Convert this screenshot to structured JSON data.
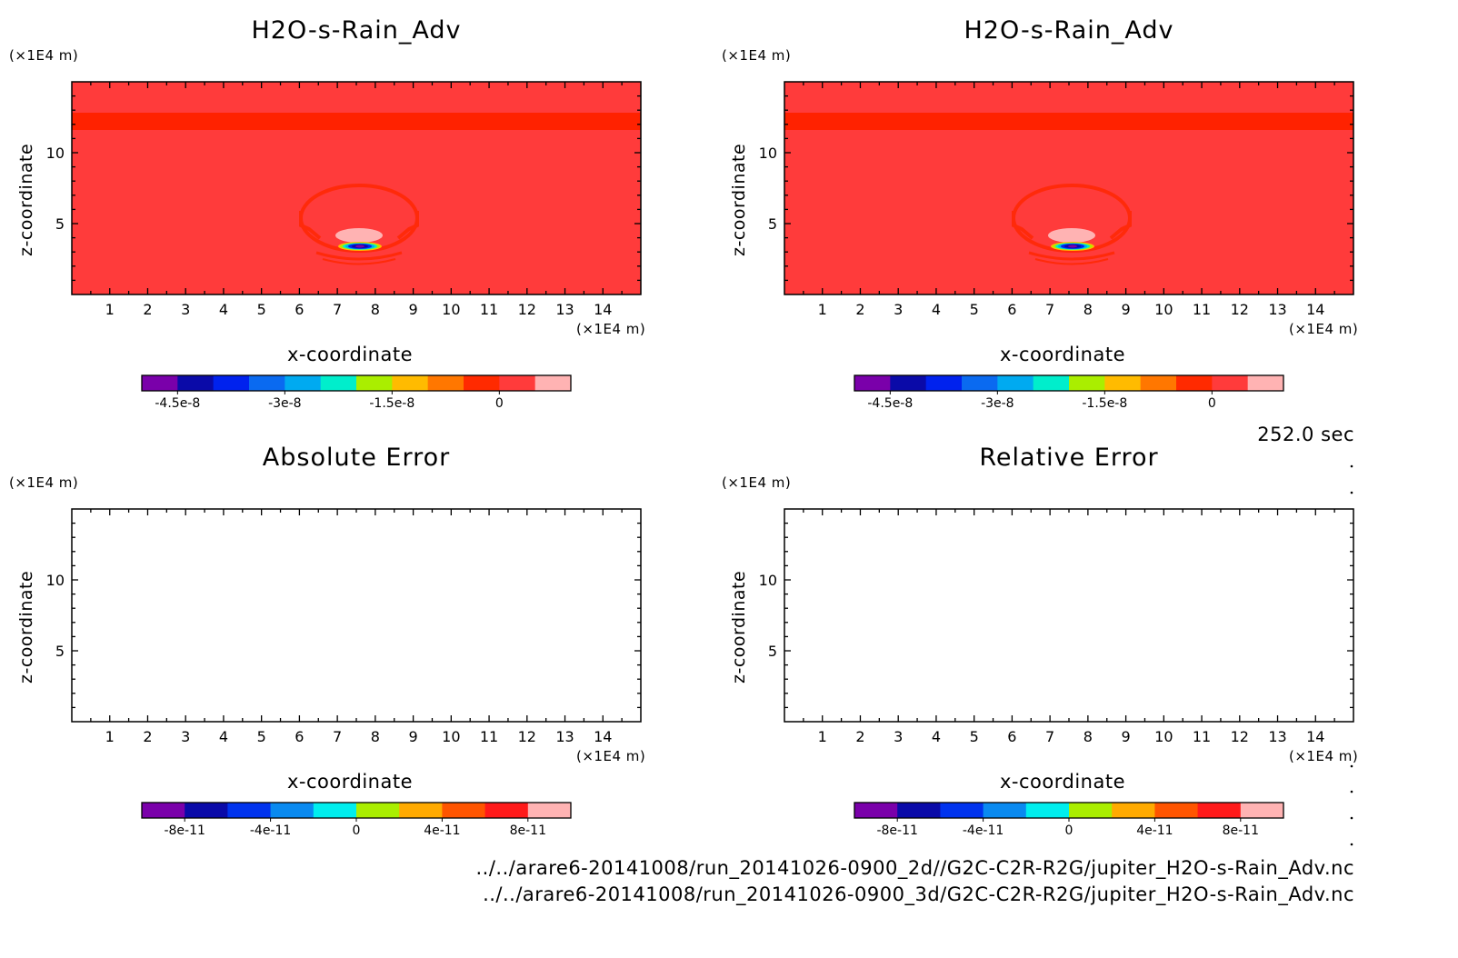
{
  "colors": {
    "field_bg": "#ff3b3b",
    "band": "#ff2200",
    "contour": "#ff2a0a",
    "pink": "#ffb3b3",
    "axis": "#000000"
  },
  "timestamp": "252.0 sec",
  "files": [
    "../../arare6-20141008/run_20141026-0900_2d//G2C-C2R-R2G/jupiter_H2O-s-Rain_Adv.nc",
    "../../arare6-20141008/run_20141026-0900_3d/G2C-C2R-R2G/jupiter_H2O-s-Rain_Adv.nc"
  ],
  "panels": [
    {
      "title": "H2O-s-Rain_Adv",
      "yunit": "(×1E4 m)",
      "xunit": "(×1E4 m)",
      "xlabel": "x-coordinate",
      "ylabel": "z-coordinate",
      "xticks": [
        "1",
        "2",
        "3",
        "4",
        "5",
        "6",
        "7",
        "8",
        "9",
        "10",
        "11",
        "12",
        "13",
        "14"
      ],
      "yticks": [
        "5",
        "10"
      ],
      "filled": true,
      "colorbar": {
        "colors": [
          "#7a00aa",
          "#0a0aa8",
          "#0022ee",
          "#0a6af0",
          "#00aaf0",
          "#00eecc",
          "#aaee00",
          "#ffbb00",
          "#ff7700",
          "#ff2a00",
          "#ff3b3b",
          "#ffb3b3"
        ],
        "labels": [
          "-4.5e-8",
          "-3e-8",
          "-1.5e-8",
          "0"
        ]
      }
    },
    {
      "title": "H2O-s-Rain_Adv",
      "yunit": "(×1E4 m)",
      "xunit": "(×1E4 m)",
      "xlabel": "x-coordinate",
      "ylabel": "z-coordinate",
      "xticks": [
        "1",
        "2",
        "3",
        "4",
        "5",
        "6",
        "7",
        "8",
        "9",
        "10",
        "11",
        "12",
        "13",
        "14"
      ],
      "yticks": [
        "5",
        "10"
      ],
      "filled": true,
      "colorbar": {
        "colors": [
          "#7a00aa",
          "#0a0aa8",
          "#0022ee",
          "#0a6af0",
          "#00aaf0",
          "#00eecc",
          "#aaee00",
          "#ffbb00",
          "#ff7700",
          "#ff2a00",
          "#ff3b3b",
          "#ffb3b3"
        ],
        "labels": [
          "-4.5e-8",
          "-3e-8",
          "-1.5e-8",
          "0"
        ]
      }
    },
    {
      "title": "Absolute Error",
      "yunit": "(×1E4 m)",
      "xunit": "(×1E4 m)",
      "xlabel": "x-coordinate",
      "ylabel": "z-coordinate",
      "xticks": [
        "1",
        "2",
        "3",
        "4",
        "5",
        "6",
        "7",
        "8",
        "9",
        "10",
        "11",
        "12",
        "13",
        "14"
      ],
      "yticks": [
        "5",
        "10"
      ],
      "filled": false,
      "colorbar": {
        "colors": [
          "#7a00aa",
          "#0a0aa8",
          "#0033ee",
          "#0a8af0",
          "#00eeee",
          "#aaee00",
          "#ffaa00",
          "#ff5500",
          "#ff1a1a",
          "#ffb3b3"
        ],
        "labels": [
          "-8e-11",
          "-4e-11",
          "0",
          "4e-11",
          "8e-11"
        ]
      }
    },
    {
      "title": "Relative Error",
      "yunit": "(×1E4 m)",
      "xunit": "(×1E4 m)",
      "xlabel": "x-coordinate",
      "ylabel": "z-coordinate",
      "xticks": [
        "1",
        "2",
        "3",
        "4",
        "5",
        "6",
        "7",
        "8",
        "9",
        "10",
        "11",
        "12",
        "13",
        "14"
      ],
      "yticks": [
        "5",
        "10"
      ],
      "filled": false,
      "colorbar": {
        "colors": [
          "#7a00aa",
          "#0a0aa8",
          "#0033ee",
          "#0a8af0",
          "#00eeee",
          "#aaee00",
          "#ffaa00",
          "#ff5500",
          "#ff1a1a",
          "#ffb3b3"
        ],
        "labels": [
          "-8e-11",
          "-4e-11",
          "0",
          "4e-11",
          "8e-11"
        ]
      }
    }
  ],
  "chart_data": [
    {
      "type": "heatmap",
      "title": "H2O-s-Rain_Adv",
      "xlabel": "x-coordinate",
      "ylabel": "z-coordinate",
      "x_unit": "(×1E4 m)",
      "y_unit": "(×1E4 m)",
      "xlim": [
        0,
        15
      ],
      "ylim": [
        0,
        15
      ],
      "colorbar_labels": [
        "-4.5e-8",
        "-3e-8",
        "-1.5e-8",
        "0"
      ]
    },
    {
      "type": "heatmap",
      "title": "H2O-s-Rain_Adv",
      "xlabel": "x-coordinate",
      "ylabel": "z-coordinate",
      "x_unit": "(×1E4 m)",
      "y_unit": "(×1E4 m)",
      "xlim": [
        0,
        15
      ],
      "ylim": [
        0,
        15
      ],
      "colorbar_labels": [
        "-4.5e-8",
        "-3e-8",
        "-1.5e-8",
        "0"
      ]
    },
    {
      "type": "heatmap",
      "title": "Absolute Error",
      "xlabel": "x-coordinate",
      "ylabel": "z-coordinate",
      "x_unit": "(×1E4 m)",
      "y_unit": "(×1E4 m)",
      "xlim": [
        0,
        15
      ],
      "ylim": [
        0,
        15
      ],
      "colorbar_labels": [
        "-8e-11",
        "-4e-11",
        "0",
        "4e-11",
        "8e-11"
      ]
    },
    {
      "type": "heatmap",
      "title": "Relative Error",
      "xlabel": "x-coordinate",
      "ylabel": "z-coordinate",
      "x_unit": "(×1E4 m)",
      "y_unit": "(×1E4 m)",
      "xlim": [
        0,
        15
      ],
      "ylim": [
        0,
        15
      ],
      "colorbar_labels": [
        "-8e-11",
        "-4e-11",
        "0",
        "4e-11",
        "8e-11"
      ]
    }
  ]
}
